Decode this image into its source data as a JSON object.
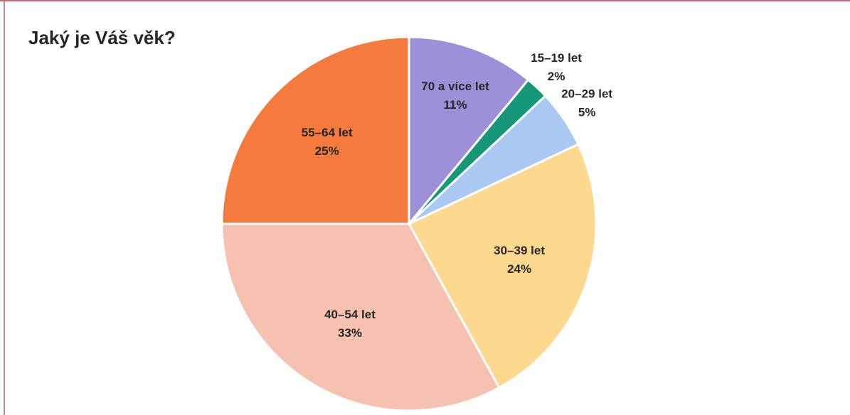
{
  "chart_data": {
    "type": "pie",
    "title": "Jaký je Váš věk?",
    "categories": [
      "70 a více let",
      "15–19 let",
      "20–29 let",
      "30–39 let",
      "40–54 let",
      "55–64 let"
    ],
    "values": [
      11,
      2,
      5,
      24,
      33,
      25
    ],
    "value_labels": [
      "11%",
      "2%",
      "5%",
      "24%",
      "33%",
      "25%"
    ],
    "colors": [
      "#9d8fd8",
      "#17977a",
      "#a9c9f2",
      "#fcd98f",
      "#f6c1b1",
      "#f47b3d"
    ]
  }
}
